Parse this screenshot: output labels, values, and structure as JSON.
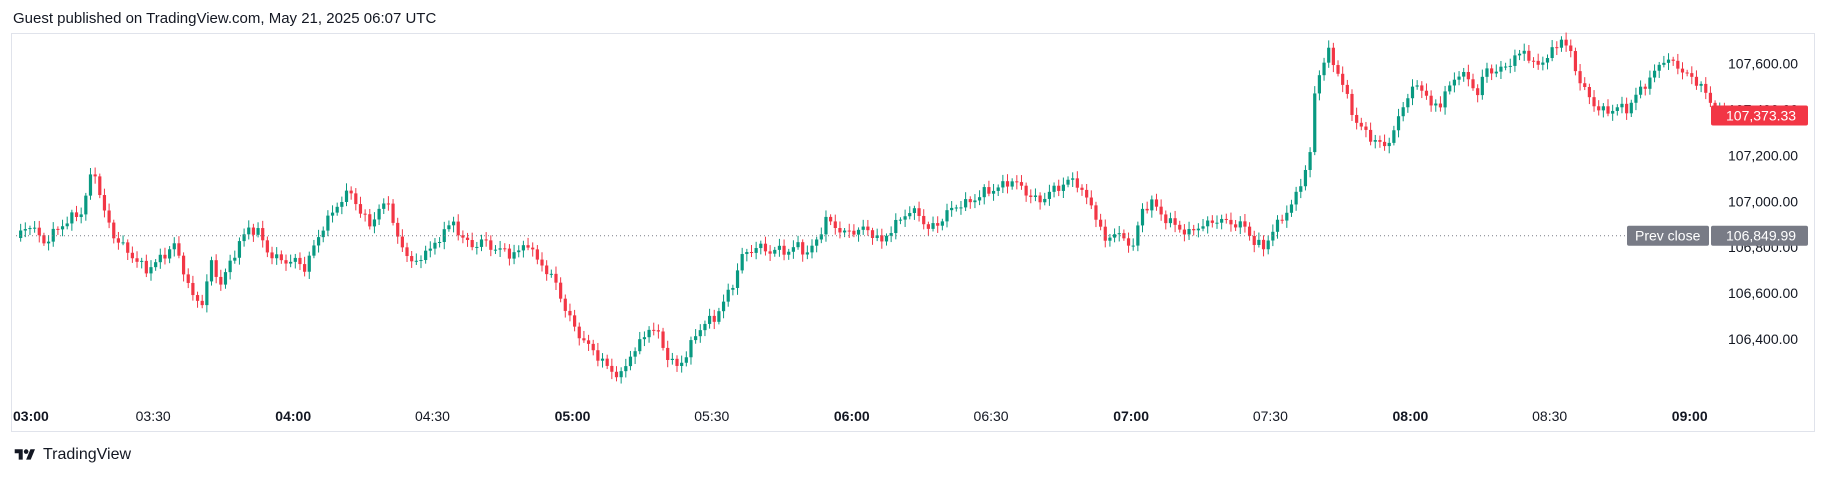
{
  "header": {
    "published": "Guest published on TradingView.com, May 21, 2025 06:07 UTC"
  },
  "footer": {
    "brand": "TradingView"
  },
  "colors": {
    "up": "#089981",
    "down": "#f23645",
    "prev_close_bg": "#787b86",
    "last_price_bg": "#f23645",
    "grid_border": "#e0e3eb"
  },
  "chart_data": {
    "type": "candlestick",
    "ylim": [
      106200,
      107750
    ],
    "y_ticks": [
      106400,
      106600,
      106800,
      107000,
      107200,
      107400,
      107600
    ],
    "y_tick_labels": [
      "106,400.00",
      "106,600.00",
      "106,800.00",
      "107,000.00",
      "107,200.00",
      "107,400.00",
      "107,600.00"
    ],
    "x_ticks": [
      {
        "label": "03:00",
        "bold": true,
        "index": 0
      },
      {
        "label": "03:30",
        "bold": false,
        "index": 30
      },
      {
        "label": "04:00",
        "bold": true,
        "index": 60
      },
      {
        "label": "04:30",
        "bold": false,
        "index": 90
      },
      {
        "label": "05:00",
        "bold": true,
        "index": 120
      },
      {
        "label": "05:30",
        "bold": false,
        "index": 150
      },
      {
        "label": "06:00",
        "bold": true,
        "index": 180
      },
      {
        "label": "06:30",
        "bold": false,
        "index": 210
      },
      {
        "label": "07:00",
        "bold": true,
        "index": 240
      },
      {
        "label": "07:30",
        "bold": false,
        "index": 270
      },
      {
        "label": "08:00",
        "bold": true,
        "index": 300
      },
      {
        "label": "08:30",
        "bold": false,
        "index": 330
      },
      {
        "label": "09:00",
        "bold": true,
        "index": 360
      }
    ],
    "x_range": [
      0,
      368
    ],
    "prev_close": {
      "label": "Prev close",
      "value": 106849.99,
      "value_label": "106,849.99"
    },
    "last_price": {
      "value": 107373.33,
      "value_label": "107,373.33"
    },
    "anchors": [
      [
        0,
        106840
      ],
      [
        3,
        106900
      ],
      [
        6,
        106820
      ],
      [
        9,
        106880
      ],
      [
        12,
        106930
      ],
      [
        14,
        106950
      ],
      [
        16,
        107100
      ],
      [
        17,
        107120
      ],
      [
        19,
        106950
      ],
      [
        21,
        106850
      ],
      [
        24,
        106780
      ],
      [
        28,
        106700
      ],
      [
        31,
        106750
      ],
      [
        34,
        106810
      ],
      [
        36,
        106700
      ],
      [
        38,
        106580
      ],
      [
        40,
        106560
      ],
      [
        42,
        106730
      ],
      [
        44,
        106640
      ],
      [
        46,
        106730
      ],
      [
        48,
        106820
      ],
      [
        50,
        106880
      ],
      [
        52,
        106870
      ],
      [
        54,
        106780
      ],
      [
        57,
        106740
      ],
      [
        60,
        106740
      ],
      [
        62,
        106710
      ],
      [
        64,
        106800
      ],
      [
        66,
        106890
      ],
      [
        68,
        106950
      ],
      [
        70,
        107010
      ],
      [
        72,
        107040
      ],
      [
        74,
        106950
      ],
      [
        76,
        106900
      ],
      [
        78,
        106960
      ],
      [
        80,
        107000
      ],
      [
        82,
        106830
      ],
      [
        84,
        106770
      ],
      [
        86,
        106720
      ],
      [
        88,
        106790
      ],
      [
        90,
        106800
      ],
      [
        92,
        106880
      ],
      [
        94,
        106900
      ],
      [
        96,
        106840
      ],
      [
        98,
        106800
      ],
      [
        100,
        106830
      ],
      [
        102,
        106800
      ],
      [
        104,
        106790
      ],
      [
        106,
        106770
      ],
      [
        108,
        106780
      ],
      [
        110,
        106820
      ],
      [
        112,
        106740
      ],
      [
        114,
        106700
      ],
      [
        116,
        106640
      ],
      [
        118,
        106530
      ],
      [
        120,
        106450
      ],
      [
        122,
        106390
      ],
      [
        124,
        106350
      ],
      [
        126,
        106300
      ],
      [
        128,
        106260
      ],
      [
        130,
        106240
      ],
      [
        132,
        106330
      ],
      [
        134,
        106380
      ],
      [
        136,
        106450
      ],
      [
        138,
        106420
      ],
      [
        140,
        106320
      ],
      [
        142,
        106280
      ],
      [
        144,
        106330
      ],
      [
        146,
        106420
      ],
      [
        148,
        106470
      ],
      [
        150,
        106490
      ],
      [
        152,
        106560
      ],
      [
        154,
        106640
      ],
      [
        156,
        106760
      ],
      [
        158,
        106790
      ],
      [
        160,
        106800
      ],
      [
        162,
        106780
      ],
      [
        164,
        106790
      ],
      [
        166,
        106780
      ],
      [
        168,
        106810
      ],
      [
        170,
        106770
      ],
      [
        172,
        106830
      ],
      [
        174,
        106920
      ],
      [
        176,
        106890
      ],
      [
        178,
        106860
      ],
      [
        180,
        106870
      ],
      [
        182,
        106880
      ],
      [
        184,
        106860
      ],
      [
        186,
        106820
      ],
      [
        188,
        106880
      ],
      [
        190,
        106920
      ],
      [
        192,
        106960
      ],
      [
        194,
        106940
      ],
      [
        196,
        106880
      ],
      [
        198,
        106900
      ],
      [
        200,
        106950
      ],
      [
        202,
        106980
      ],
      [
        204,
        106990
      ],
      [
        206,
        107010
      ],
      [
        208,
        107040
      ],
      [
        210,
        107050
      ],
      [
        212,
        107070
      ],
      [
        214,
        107090
      ],
      [
        216,
        107060
      ],
      [
        218,
        107020
      ],
      [
        220,
        107000
      ],
      [
        222,
        107040
      ],
      [
        224,
        107060
      ],
      [
        226,
        107090
      ],
      [
        228,
        107080
      ],
      [
        230,
        107010
      ],
      [
        232,
        106940
      ],
      [
        234,
        106820
      ],
      [
        236,
        106870
      ],
      [
        238,
        106830
      ],
      [
        240,
        106810
      ],
      [
        242,
        106960
      ],
      [
        244,
        107000
      ],
      [
        246,
        106940
      ],
      [
        248,
        106910
      ],
      [
        250,
        106880
      ],
      [
        252,
        106860
      ],
      [
        254,
        106890
      ],
      [
        256,
        106900
      ],
      [
        258,
        106920
      ],
      [
        260,
        106910
      ],
      [
        262,
        106900
      ],
      [
        264,
        106890
      ],
      [
        266,
        106820
      ],
      [
        268,
        106800
      ],
      [
        270,
        106870
      ],
      [
        272,
        106930
      ],
      [
        274,
        106980
      ],
      [
        276,
        107080
      ],
      [
        278,
        107200
      ],
      [
        279,
        107470
      ],
      [
        280,
        107560
      ],
      [
        282,
        107650
      ],
      [
        284,
        107560
      ],
      [
        286,
        107450
      ],
      [
        288,
        107340
      ],
      [
        290,
        107300
      ],
      [
        292,
        107260
      ],
      [
        294,
        107240
      ],
      [
        296,
        107300
      ],
      [
        298,
        107420
      ],
      [
        300,
        107490
      ],
      [
        302,
        107500
      ],
      [
        304,
        107410
      ],
      [
        306,
        107430
      ],
      [
        308,
        107500
      ],
      [
        310,
        107560
      ],
      [
        312,
        107530
      ],
      [
        314,
        107470
      ],
      [
        316,
        107580
      ],
      [
        318,
        107560
      ],
      [
        320,
        107590
      ],
      [
        322,
        107620
      ],
      [
        324,
        107660
      ],
      [
        326,
        107590
      ],
      [
        328,
        107610
      ],
      [
        330,
        107650
      ],
      [
        332,
        107710
      ],
      [
        334,
        107640
      ],
      [
        336,
        107520
      ],
      [
        338,
        107450
      ],
      [
        340,
        107400
      ],
      [
        342,
        107390
      ],
      [
        344,
        107410
      ],
      [
        346,
        107400
      ],
      [
        348,
        107460
      ],
      [
        350,
        107510
      ],
      [
        352,
        107560
      ],
      [
        354,
        107620
      ],
      [
        356,
        107600
      ],
      [
        358,
        107570
      ],
      [
        360,
        107530
      ],
      [
        362,
        107510
      ],
      [
        364,
        107420
      ],
      [
        366,
        107390
      ],
      [
        368,
        107373
      ]
    ]
  }
}
